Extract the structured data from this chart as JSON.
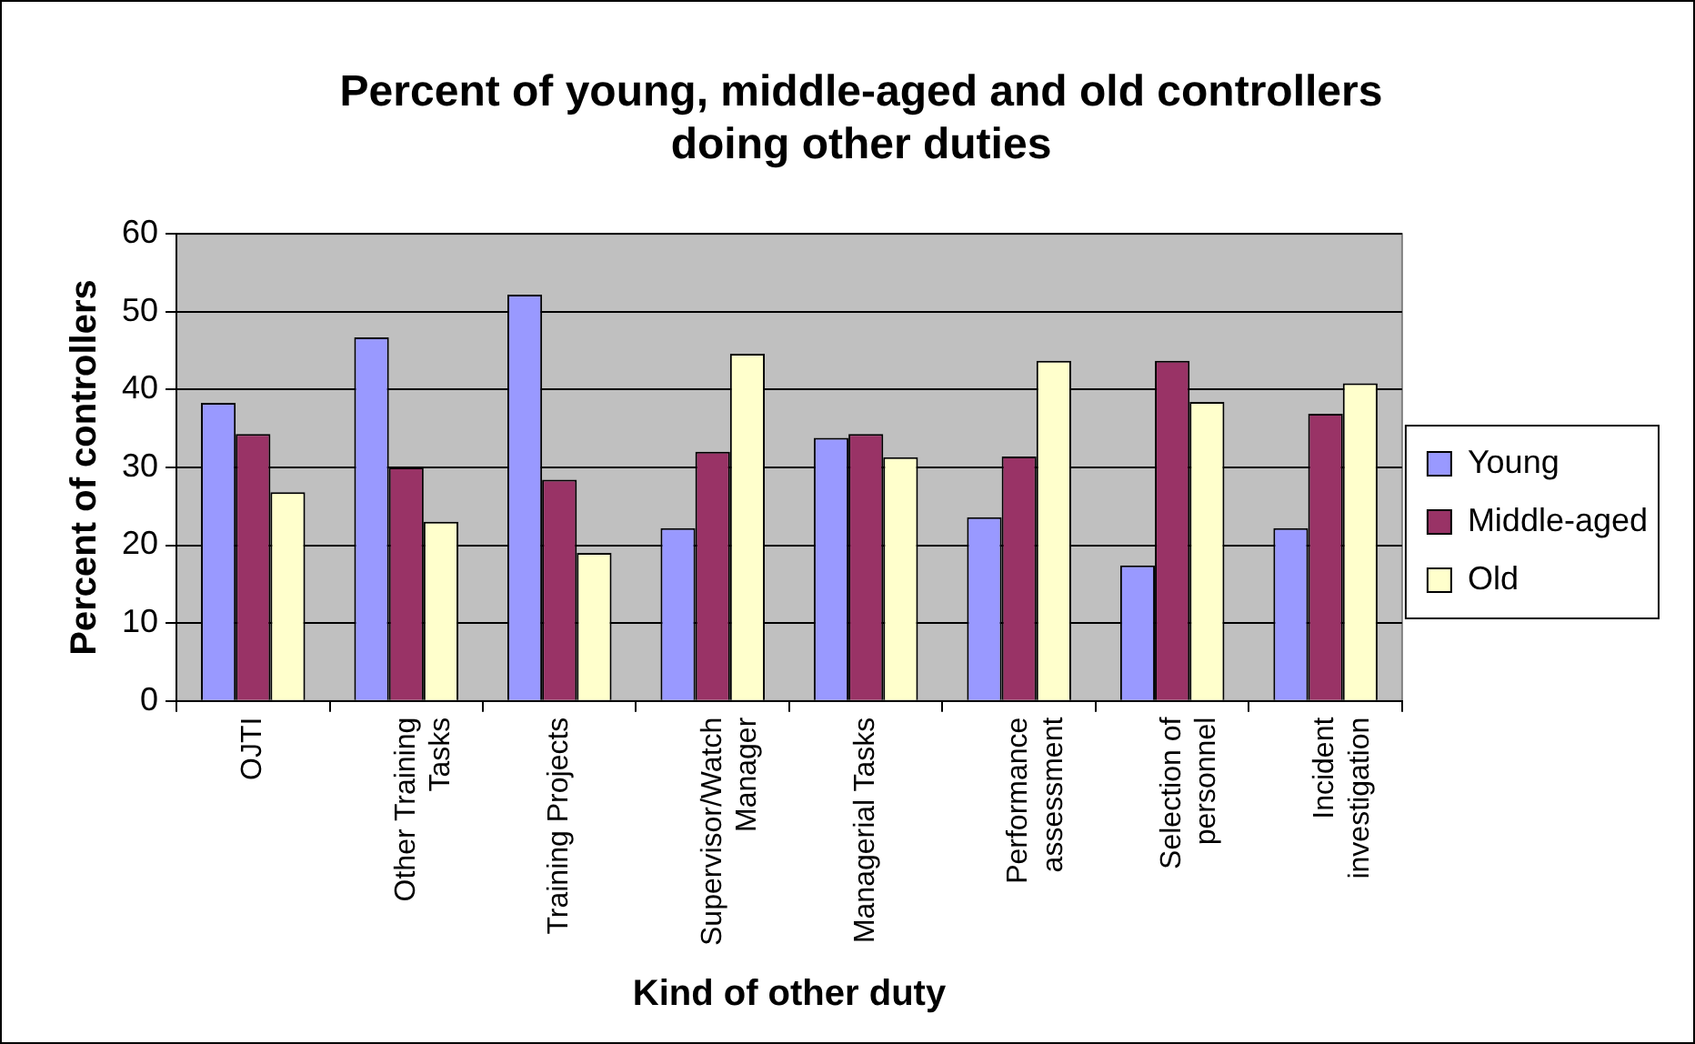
{
  "chart_data": {
    "type": "bar",
    "title": "Percent of young, middle-aged and old controllers doing other duties",
    "xlabel": "Kind of other duty",
    "ylabel": "Percent of controllers",
    "categories": [
      "OJTI",
      "Other Training Tasks",
      "Training Projects",
      "Supervisor/Watch Manager",
      "Managerial Tasks",
      "Performance assessment",
      "Selection of personnel",
      "Incident investigation"
    ],
    "series": [
      {
        "name": "Young",
        "color": "#9999ff",
        "values": [
          38.3,
          46.7,
          52.2,
          22.2,
          33.8,
          23.6,
          17.4,
          22.2
        ]
      },
      {
        "name": "Middle-aged",
        "color": "#993366",
        "values": [
          34.3,
          30,
          28.4,
          32,
          34.3,
          31.4,
          43.7,
          36.9
        ]
      },
      {
        "name": "Old",
        "color": "#ffffcc",
        "values": [
          26.8,
          23,
          19,
          44.6,
          31.3,
          43.7,
          38.4,
          40.8
        ]
      }
    ],
    "ylim": [
      0,
      60
    ],
    "yticks": [
      0,
      10,
      20,
      30,
      40,
      50,
      60
    ],
    "grid": "y",
    "legend": "right"
  }
}
